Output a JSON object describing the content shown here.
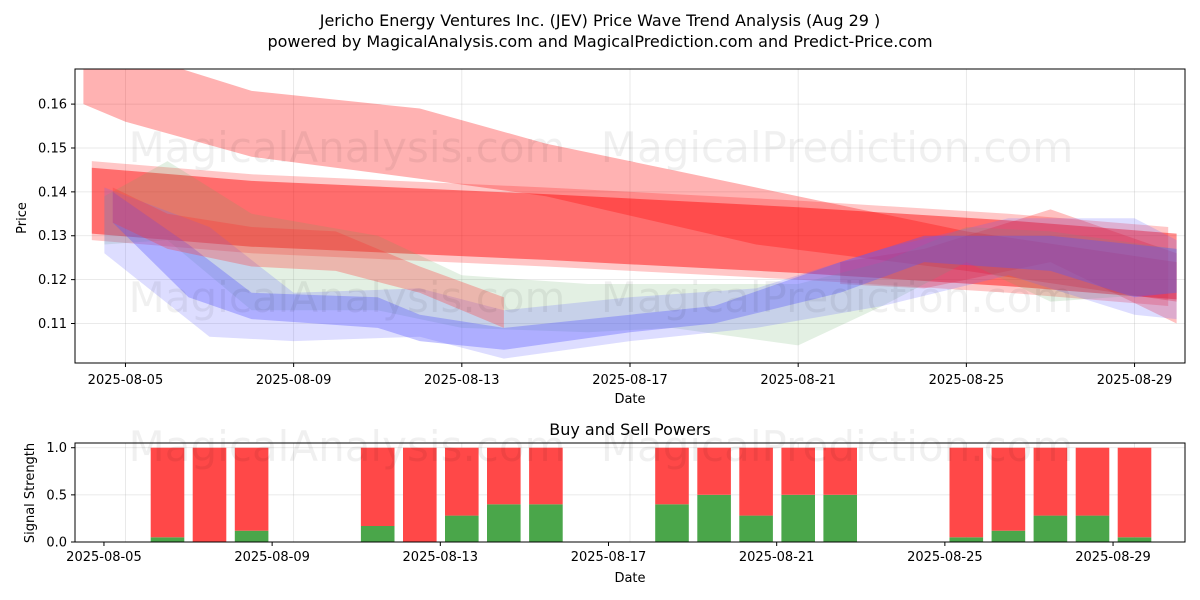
{
  "chart_data": [
    {
      "type": "area",
      "title_line1": "Jericho Energy Ventures Inc. (JEV) Price Wave Trend Analysis (Aug 29 )",
      "title_line2": "powered by MagicalAnalysis.com and MagicalPrediction.com and Predict-Price.com",
      "xlabel": "Date",
      "ylabel": "Price",
      "xlim": [
        -1.2,
        25.2
      ],
      "ylim": [
        0.101,
        0.168
      ],
      "x_tick_positions": [
        0,
        4,
        8,
        12,
        16,
        20,
        24
      ],
      "x_tick_labels": [
        "2025-08-05",
        "2025-08-09",
        "2025-08-13",
        "2025-08-17",
        "2025-08-21",
        "2025-08-25",
        "2025-08-29"
      ],
      "y_ticks": [
        0.11,
        0.12,
        0.13,
        0.14,
        0.15,
        0.16
      ],
      "y_tick_labels": [
        "0.11",
        "0.12",
        "0.13",
        "0.14",
        "0.15",
        "0.16"
      ],
      "grid": true,
      "watermark": [
        "MagicalAnalysis.com",
        "MagicalPrediction.com"
      ],
      "series": [
        {
          "name": "red-band-upper",
          "color": "#ff0000",
          "opacity": 0.3,
          "x": [
            -1,
            0,
            3,
            7,
            10,
            15,
            20,
            25
          ],
          "upper": [
            0.168,
            0.172,
            0.163,
            0.159,
            0.151,
            0.141,
            0.131,
            0.124
          ],
          "lower": [
            0.16,
            0.156,
            0.148,
            0.143,
            0.139,
            0.128,
            0.122,
            0.115
          ]
        },
        {
          "name": "red-band-main",
          "color": "#ff0000",
          "opacity": 0.45,
          "x": [
            -0.8,
            3,
            10,
            16,
            21,
            25
          ],
          "upper": [
            0.1455,
            0.1425,
            0.1395,
            0.1365,
            0.1335,
            0.1305
          ],
          "lower": [
            0.1305,
            0.1275,
            0.1245,
            0.1215,
            0.1185,
            0.1155
          ]
        },
        {
          "name": "red-band-light",
          "color": "#ff0000",
          "opacity": 0.22,
          "x": [
            -0.8,
            3,
            10,
            16,
            21,
            24.8
          ],
          "upper": [
            0.147,
            0.144,
            0.141,
            0.138,
            0.135,
            0.132
          ],
          "lower": [
            0.129,
            0.126,
            0.123,
            0.12,
            0.117,
            0.114
          ]
        },
        {
          "name": "red-band-tail",
          "color": "#ff0000",
          "opacity": 0.25,
          "x": [
            17,
            19,
            22,
            25
          ],
          "upper": [
            0.124,
            0.127,
            0.136,
            0.126
          ],
          "lower": [
            0.119,
            0.118,
            0.124,
            0.11
          ]
        },
        {
          "name": "green-wave",
          "color": "#66aa66",
          "opacity": 0.18,
          "x": [
            -0.5,
            1,
            3,
            6,
            8,
            11,
            13,
            16,
            18,
            20,
            22,
            25
          ],
          "upper": [
            0.139,
            0.147,
            0.135,
            0.13,
            0.121,
            0.119,
            0.119,
            0.119,
            0.124,
            0.132,
            0.131,
            0.127
          ],
          "lower": [
            0.128,
            0.129,
            0.113,
            0.113,
            0.109,
            0.108,
            0.109,
            0.105,
            0.114,
            0.124,
            0.115,
            0.117
          ]
        },
        {
          "name": "blue-wave-wide",
          "color": "#6666ff",
          "opacity": 0.22,
          "x": [
            -0.5,
            2,
            4,
            7,
            9,
            12,
            15,
            18,
            21,
            24,
            25
          ],
          "upper": [
            0.141,
            0.132,
            0.117,
            0.118,
            0.113,
            0.116,
            0.118,
            0.127,
            0.134,
            0.134,
            0.129
          ],
          "lower": [
            0.126,
            0.107,
            0.106,
            0.107,
            0.102,
            0.106,
            0.109,
            0.114,
            0.121,
            0.112,
            0.111
          ]
        },
        {
          "name": "blue-wave-core",
          "color": "#5555ff",
          "opacity": 0.35,
          "x": [
            -0.3,
            1.5,
            3,
            6,
            7,
            9,
            12,
            14,
            17,
            19,
            22,
            24,
            25
          ],
          "upper": [
            0.14,
            0.128,
            0.117,
            0.116,
            0.112,
            0.109,
            0.112,
            0.114,
            0.124,
            0.13,
            0.13,
            0.128,
            0.127
          ],
          "lower": [
            0.133,
            0.116,
            0.111,
            0.109,
            0.106,
            0.104,
            0.108,
            0.11,
            0.117,
            0.124,
            0.122,
            0.116,
            0.117
          ]
        },
        {
          "name": "red-wave-short",
          "color": "#ff3333",
          "opacity": 0.3,
          "x": [
            -0.3,
            1,
            3,
            5,
            7,
            9
          ],
          "upper": [
            0.141,
            0.135,
            0.132,
            0.131,
            0.123,
            0.116
          ],
          "lower": [
            0.133,
            0.127,
            0.123,
            0.122,
            0.117,
            0.109
          ]
        }
      ]
    },
    {
      "type": "bar",
      "title": "Buy and Sell Powers",
      "xlabel": "Date",
      "ylabel": "Signal Strength",
      "xlim": [
        -1.2,
        25.2
      ],
      "ylim": [
        0,
        1.05
      ],
      "x_tick_positions": [
        0,
        4,
        8,
        12,
        16,
        20,
        24
      ],
      "x_tick_labels": [
        "2025-08-05",
        "2025-08-09",
        "2025-08-13",
        "2025-08-17",
        "2025-08-21",
        "2025-08-25",
        "2025-08-29"
      ],
      "y_ticks": [
        0,
        0.5,
        1.0
      ],
      "y_tick_labels": [
        "0.0",
        "0.5",
        "1.0"
      ],
      "grid": true,
      "series": [
        {
          "name": "Buy",
          "color": "#4aa64a",
          "x": [
            1,
            2,
            3,
            6,
            7,
            8,
            9,
            10,
            13,
            14,
            15,
            16,
            17,
            20,
            21,
            22,
            23,
            24
          ],
          "values": [
            0.05,
            0.0,
            0.12,
            0.17,
            0.0,
            0.28,
            0.4,
            0.4,
            0.4,
            0.5,
            0.28,
            0.5,
            0.5,
            0.05,
            0.12,
            0.28,
            0.28,
            0.05
          ]
        },
        {
          "name": "Sell",
          "color": "#ff4848",
          "x": [
            1,
            2,
            3,
            6,
            7,
            8,
            9,
            10,
            13,
            14,
            15,
            16,
            17,
            20,
            21,
            22,
            23,
            24
          ],
          "values": [
            0.95,
            1.0,
            0.88,
            0.83,
            1.0,
            0.72,
            0.6,
            0.6,
            0.6,
            0.5,
            0.72,
            0.5,
            0.5,
            0.95,
            0.88,
            0.72,
            0.72,
            0.95
          ]
        }
      ]
    }
  ]
}
